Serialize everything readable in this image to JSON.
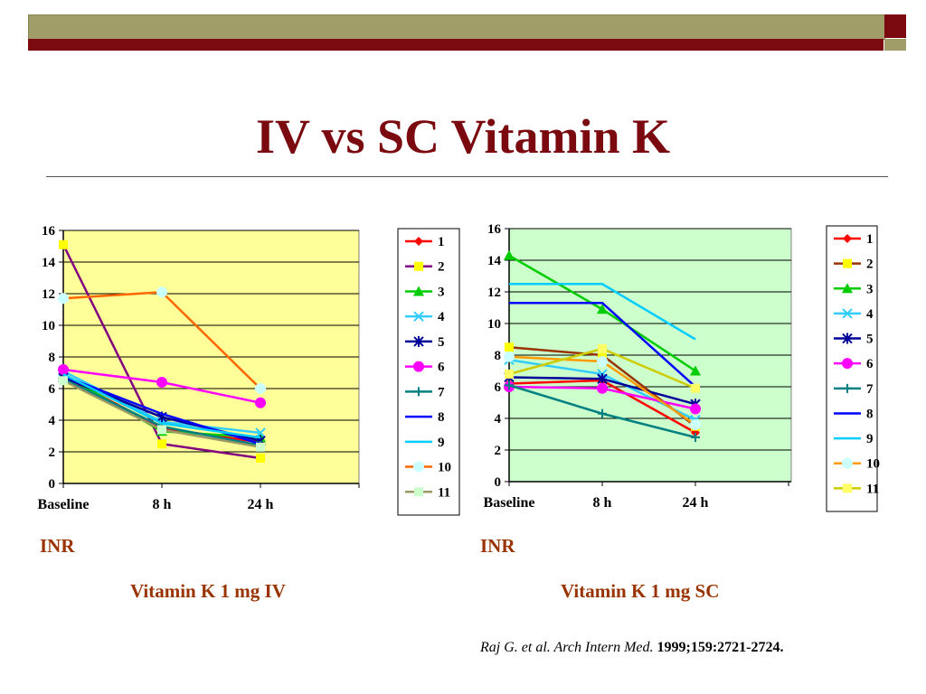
{
  "slide": {
    "title": "IV vs SC Vitamin K",
    "citation_italic": "Raj G. et al. Arch Intern Med.",
    "citation_rest": " 1999;159:2721-2724."
  },
  "colors": {
    "maroon": "#7a0a0f",
    "olive": "#a19d68",
    "caption": "#993300",
    "left_plot_bg": "#ffff99",
    "right_plot_bg": "#ccffcc"
  },
  "chart_data": [
    {
      "type": "line",
      "plot_bg": "#ffff99",
      "categories": [
        "Baseline",
        "8 h",
        "24 h"
      ],
      "ylabel": "INR",
      "ylim": [
        0,
        16
      ],
      "yticks": [
        0,
        2,
        4,
        6,
        8,
        10,
        12,
        14,
        16
      ],
      "grid": true,
      "legend": "right",
      "caption": "Vitamin K 1 mg IV",
      "series": [
        {
          "name": "1",
          "values": [
            6.8,
            3.5,
            2.6
          ],
          "color": "#ff0000",
          "marker": "diamond"
        },
        {
          "name": "2",
          "values": [
            15.1,
            2.5,
            1.6
          ],
          "color": "#800080",
          "marker": "square",
          "marker_color": "#ffff00"
        },
        {
          "name": "3",
          "values": [
            6.9,
            3.3,
            2.9
          ],
          "color": "#00cc00",
          "marker": "triangle"
        },
        {
          "name": "4",
          "values": [
            7.1,
            3.9,
            3.2
          ],
          "color": "#33ccff",
          "marker": "x"
        },
        {
          "name": "5",
          "values": [
            6.7,
            4.2,
            2.7
          ],
          "color": "#000099",
          "marker": "star"
        },
        {
          "name": "6",
          "values": [
            7.2,
            6.4,
            5.1
          ],
          "color": "#ff00ff",
          "marker": "circle"
        },
        {
          "name": "7",
          "values": [
            6.6,
            3.6,
            2.4
          ],
          "color": "#008080",
          "marker": "plus"
        },
        {
          "name": "8",
          "values": [
            6.8,
            4.4,
            2.5
          ],
          "color": "#0000ff",
          "marker": "none"
        },
        {
          "name": "9",
          "values": [
            6.9,
            3.8,
            2.9
          ],
          "color": "#00ccff",
          "marker": "none"
        },
        {
          "name": "10",
          "values": [
            11.7,
            12.1,
            6.0
          ],
          "color": "#ff6600",
          "marker": "circle",
          "marker_color": "#ccffff"
        },
        {
          "name": "11",
          "values": [
            6.5,
            3.4,
            2.3
          ],
          "color": "#999966",
          "marker": "square",
          "marker_color": "#ccffcc"
        }
      ]
    },
    {
      "type": "line",
      "plot_bg": "#ccffcc",
      "categories": [
        "Baseline",
        "8 h",
        "24 h"
      ],
      "ylabel": "INR",
      "ylim": [
        0,
        16
      ],
      "yticks": [
        0,
        2,
        4,
        6,
        8,
        10,
        12,
        14,
        16
      ],
      "grid": true,
      "legend": "right",
      "caption": "Vitamin K 1 mg SC",
      "series": [
        {
          "name": "1",
          "values": [
            6.2,
            6.4,
            3.1
          ],
          "color": "#ff0000",
          "marker": "diamond"
        },
        {
          "name": "2",
          "values": [
            8.5,
            8.0,
            3.5
          ],
          "color": "#993300",
          "marker": "square",
          "marker_color": "#ffff00"
        },
        {
          "name": "3",
          "values": [
            14.3,
            10.9,
            7.0
          ],
          "color": "#00cc00",
          "marker": "triangle"
        },
        {
          "name": "4",
          "values": [
            7.7,
            6.8,
            3.9
          ],
          "color": "#33ccff",
          "marker": "x"
        },
        {
          "name": "5",
          "values": [
            6.6,
            6.5,
            4.9
          ],
          "color": "#000099",
          "marker": "star"
        },
        {
          "name": "6",
          "values": [
            6.0,
            5.9,
            4.6
          ],
          "color": "#ff00ff",
          "marker": "circle"
        },
        {
          "name": "7",
          "values": [
            6.1,
            4.3,
            2.8
          ],
          "color": "#008080",
          "marker": "plus"
        },
        {
          "name": "8",
          "values": [
            11.3,
            11.3,
            6.0
          ],
          "color": "#0000ff",
          "marker": "none"
        },
        {
          "name": "9",
          "values": [
            12.5,
            12.5,
            9.0
          ],
          "color": "#00ccff",
          "marker": "none"
        },
        {
          "name": "10",
          "values": [
            7.9,
            7.6,
            3.6
          ],
          "color": "#ff9900",
          "marker": "circle",
          "marker_color": "#ccffff"
        },
        {
          "name": "11",
          "values": [
            6.8,
            8.4,
            5.9
          ],
          "color": "#cccc00",
          "marker": "square",
          "marker_color": "#ffff66"
        }
      ]
    }
  ]
}
